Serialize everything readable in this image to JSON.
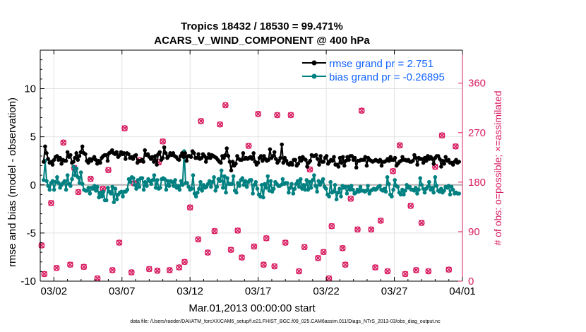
{
  "chart_data": {
    "type": "line",
    "title_line1": "Tropics 18432 / 18530 = 99.471%",
    "title_line2": "ACARS_V_WIND_COMPONENT @ 400 hPa",
    "xlabel": "Mar.01,2013 00:00:00 start",
    "ylabel_left": "rmse and bias (model - observation)",
    "ylabel_right": "# of obs: o=possible; ×=assimilated",
    "footnote": "data file: /Users/raeder/DAI/ATM_forcXX/CAM6_setup/f.e21.FHIST_BGC.f09_025.CAM6assim.011/Diags_NTrS_2013-03/obs_diag_output.nc",
    "x_tick_labels": [
      "03/02",
      "03/07",
      "03/12",
      "03/17",
      "03/22",
      "03/27",
      "04/01"
    ],
    "x_tick_days": [
      1,
      6,
      11,
      16,
      21,
      26,
      31
    ],
    "xlim_days": [
      0,
      31
    ],
    "ylim_left": [
      -10,
      14
    ],
    "y_ticks_left": [
      -10,
      -5,
      0,
      5,
      10
    ],
    "ylim_right": [
      0,
      420
    ],
    "y_ticks_right": [
      0,
      90,
      180,
      270,
      360
    ],
    "legend": [
      "rmse grand pr = 2.751",
      "bias grand pr = -0.26895"
    ],
    "colors": {
      "rmse": "#000000",
      "bias": "#008080",
      "obs": "#d81b60",
      "zero_line": "#b0b0b0",
      "legend_text": "#1565ff"
    },
    "series": [
      {
        "name": "rmse",
        "values": [
          2.4,
          4.0,
          3.3,
          2.7,
          2.3,
          2.4,
          2.1,
          2.6,
          2.9,
          3.0,
          2.6,
          2.8,
          2.2,
          2.6,
          2.5,
          2.5,
          3.4,
          2.9,
          3.1,
          2.3,
          2.4,
          2.8,
          3.3,
          2.6,
          3.0,
          3.4,
          4.0,
          3.3,
          3.2,
          2.5,
          2.3,
          2.7,
          2.5,
          2.7,
          2.9,
          2.6,
          2.2,
          2.5,
          2.3,
          2.8,
          3.0,
          3.1,
          3.1,
          2.5,
          3.3,
          3.4,
          3.6,
          3.3,
          3.2,
          3.4,
          2.9,
          3.1,
          3.4,
          3.2,
          3.3,
          2.7,
          3.3,
          3.2,
          2.8,
          2.9,
          2.7,
          3.0,
          3.1,
          2.3,
          2.5,
          2.5,
          2.6,
          2.4,
          3.6,
          3.1,
          3.2,
          2.9,
          2.7,
          2.9,
          2.4,
          3.0,
          2.1,
          3.2,
          3.4,
          2.6,
          2.8,
          3.9,
          3.3,
          2.8,
          3.0,
          3.3,
          3.1,
          3.3,
          3.0,
          2.9,
          2.7,
          2.6,
          3.0,
          3.3,
          2.9,
          3.3,
          2.5,
          3.0,
          3.0,
          2.9,
          3.5,
          3.3,
          2.8,
          2.8,
          3.2,
          2.7,
          2.8,
          3.2,
          3.0,
          2.4,
          2.8,
          3.2,
          2.8,
          3.1,
          3.0,
          2.9,
          2.8,
          2.6,
          2.4,
          2.3,
          3.0,
          2.8,
          3.1,
          3.8,
          3.0,
          2.4,
          1.5,
          2.4,
          2.0,
          2.2,
          3.0,
          2.7,
          2.6,
          2.6,
          3.3,
          2.7,
          2.8,
          2.7,
          2.8,
          2.9,
          2.7,
          3.3,
          2.4,
          2.1,
          2.3,
          2.8,
          3.0,
          2.5,
          3.0,
          2.7,
          2.5,
          2.6,
          3.7,
          2.8,
          3.0,
          3.4,
          2.7,
          2.3,
          2.5,
          2.8,
          4.2,
          2.3,
          2.8,
          2.5,
          2.2,
          2.1,
          2.3,
          2.1,
          2.6,
          2.6,
          2.0,
          2.2,
          2.8,
          2.5,
          2.9,
          2.7,
          2.6,
          1.9,
          2.3,
          2.5,
          3.1,
          3.0,
          3.0,
          3.1,
          2.7,
          2.1,
          3.0,
          2.4,
          2.4,
          2.8,
          3.0,
          2.2,
          2.4,
          2.6,
          2.5,
          2.9,
          2.1,
          2.1,
          1.9,
          2.8,
          2.3,
          2.9,
          2.0,
          2.5,
          2.9,
          2.6,
          3.0,
          3.0,
          2.6,
          2.8,
          1.8,
          2.5,
          2.5,
          2.6,
          2.6,
          2.6,
          2.9,
          2.0,
          2.8,
          2.6,
          2.5,
          2.4,
          2.5,
          2.6,
          2.5,
          2.4,
          2.6,
          2.0,
          2.4,
          2.4,
          2.5,
          2.7,
          2.5,
          2.9,
          2.6,
          2.6,
          2.8,
          2.0,
          2.2,
          2.4,
          2.5,
          2.9,
          2.6,
          2.6,
          2.5,
          2.6,
          2.4,
          2.4,
          2.5,
          3.1,
          2.8,
          2.1,
          2.8,
          2.7,
          2.7,
          2.3,
          2.8,
          2.5,
          3.0,
          2.7,
          2.9,
          2.7,
          2.2,
          2.8,
          3.0,
          3.0,
          2.7,
          1.9,
          2.5,
          2.2,
          2.9,
          2.5,
          2.6,
          2.3,
          2.3,
          2.1,
          2.4,
          2.6,
          2.3,
          2.4
        ]
      },
      {
        "name": "bias",
        "values": [
          0.5,
          2.5,
          0.4,
          -0.1,
          -0.5,
          0.2,
          0.4,
          -0.5,
          0.3,
          0.8,
          0.2,
          -0.3,
          0.0,
          0.2,
          0.4,
          -0.5,
          1.0,
          0.1,
          -0.1,
          0.6,
          1.9,
          1.0,
          1.7,
          0.8,
          0.2,
          1.3,
          0.1,
          -0.5,
          -0.6,
          -0.6,
          -0.3,
          -0.9,
          -0.3,
          -0.4,
          -0.1,
          -0.6,
          -0.2,
          -1.3,
          -0.8,
          -1.2,
          -0.7,
          -1.6,
          -1.6,
          -0.3,
          -0.7,
          -0.9,
          -0.2,
          -1.8,
          -0.4,
          -1.5,
          -1.0,
          -0.8,
          -0.7,
          -1.2,
          -0.7,
          -0.7,
          -0.5,
          0.6,
          0.3,
          0.8,
          0.7,
          0.0,
          -0.4,
          0.5,
          -0.2,
          0.7,
          0.7,
          -0.5,
          0.3,
          -0.1,
          0.6,
          0.4,
          0.1,
          0.5,
          1.0,
          -0.3,
          0.5,
          -0.4,
          -0.3,
          0.6,
          0.7,
          0.6,
          -0.5,
          0.4,
          -0.1,
          0.4,
          0.3,
          -0.1,
          0.5,
          -0.3,
          -0.1,
          -0.5,
          0.4,
          0.0,
          3.5,
          0.2,
          0.2,
          -0.2,
          -0.5,
          -0.4,
          1.0,
          -0.9,
          -1.2,
          -0.8,
          -0.4,
          0.3,
          -0.6,
          0.0,
          -0.3,
          -0.2,
          0.1,
          0.4,
          -0.2,
          0.3,
          0.8,
          -0.6,
          -0.2,
          0.6,
          0.4,
          1.5,
          -0.3,
          0.9,
          -0.8,
          0.7,
          0.1,
          0.1,
          0.1,
          0.9,
          -0.6,
          -0.8,
          0.2,
          -0.1,
          0.5,
          0.7,
          0.0,
          0.4,
          -0.2,
          0.3,
          0.5,
          0.5,
          -0.9,
          0.0,
          0.3,
          -0.4,
          -1.0,
          -1.2,
          0.0,
          -1.3,
          0.1,
          -0.3,
          0.9,
          -0.6,
          0.4,
          -0.7,
          -0.4,
          0.3,
          0.1,
          -0.1,
          -0.1,
          0.0,
          0.6,
          0.1,
          0.2,
          0.2,
          -0.8,
          -0.3,
          0.1,
          -0.9,
          -0.4,
          0.1,
          0.4,
          -0.2,
          0.6,
          -0.4,
          0.0,
          -0.5,
          0.5,
          -0.5,
          0.3,
          -0.3,
          0.5,
          1.0,
          -0.1,
          -0.7,
          0.4,
          0.0,
          0.3,
          0.6,
          -0.2,
          -0.4,
          -1.0,
          -1.2,
          0.3,
          -0.8,
          -0.7,
          0.0,
          -1.5,
          -0.8,
          -0.4,
          -1.2,
          -0.1,
          -0.3,
          -0.2,
          -0.9,
          -0.2,
          -0.5,
          -0.1,
          -0.5,
          -0.9,
          -0.8,
          -0.5,
          -0.7,
          -0.2,
          -0.6,
          -0.6,
          -0.7,
          -0.6,
          -0.1,
          -0.9,
          -0.6,
          -0.5,
          -0.4,
          -0.5,
          -0.4,
          -0.2,
          -0.1,
          -0.5,
          -0.6,
          -0.4,
          -0.7,
          0.8,
          0.1,
          -1.0,
          -1.2,
          -0.5,
          0.5,
          -0.1,
          -0.2,
          -0.8,
          -1.0,
          -0.5,
          -1.0,
          -0.6,
          0.0,
          -0.3,
          -0.2,
          -0.5,
          -0.5,
          -0.6,
          -0.3,
          -0.9,
          -0.5,
          0.7,
          0.0,
          -0.4,
          -0.8,
          -0.4,
          -0.2,
          0.3,
          -0.5,
          -0.3,
          -0.8,
          0.8,
          -0.1,
          -0.6,
          -0.7,
          -0.4,
          -0.8,
          -0.6,
          -0.2,
          -0.3,
          -0.1,
          -1.0,
          -0.2,
          -0.5,
          -0.9,
          -0.8,
          -0.9,
          -0.9
        ]
      }
    ],
    "obs_counts": [
      {
        "day": 0.1,
        "count": 65
      },
      {
        "day": 0.3,
        "count": 13
      },
      {
        "day": 0.8,
        "count": 142
      },
      {
        "day": 1.2,
        "count": 24
      },
      {
        "day": 1.7,
        "count": 252
      },
      {
        "day": 2.2,
        "count": 30
      },
      {
        "day": 2.5,
        "count": 206
      },
      {
        "day": 2.8,
        "count": 162
      },
      {
        "day": 3.2,
        "count": 26
      },
      {
        "day": 3.7,
        "count": 186
      },
      {
        "day": 4.2,
        "count": 5
      },
      {
        "day": 4.6,
        "count": 168
      },
      {
        "day": 5.0,
        "count": 202
      },
      {
        "day": 5.3,
        "count": 20
      },
      {
        "day": 5.8,
        "count": 70
      },
      {
        "day": 6.2,
        "count": 278
      },
      {
        "day": 6.7,
        "count": 16
      },
      {
        "day": 6.9,
        "count": 178
      },
      {
        "day": 7.3,
        "count": 220
      },
      {
        "day": 8.0,
        "count": 22
      },
      {
        "day": 8.6,
        "count": 19
      },
      {
        "day": 8.7,
        "count": 216
      },
      {
        "day": 9.0,
        "count": 254
      },
      {
        "day": 9.5,
        "count": 20
      },
      {
        "day": 10.2,
        "count": 25
      },
      {
        "day": 10.6,
        "count": 35
      },
      {
        "day": 11.0,
        "count": 134
      },
      {
        "day": 11.6,
        "count": 76
      },
      {
        "day": 11.8,
        "count": 291
      },
      {
        "day": 12.3,
        "count": 52
      },
      {
        "day": 12.8,
        "count": 91
      },
      {
        "day": 13.2,
        "count": 285
      },
      {
        "day": 13.6,
        "count": 320
      },
      {
        "day": 14.0,
        "count": 57
      },
      {
        "day": 14.5,
        "count": 92
      },
      {
        "day": 14.8,
        "count": 43
      },
      {
        "day": 15.3,
        "count": 246
      },
      {
        "day": 15.7,
        "count": 63
      },
      {
        "day": 16.0,
        "count": 304
      },
      {
        "day": 16.4,
        "count": 30
      },
      {
        "day": 16.6,
        "count": 78
      },
      {
        "day": 17.2,
        "count": 27
      },
      {
        "day": 17.4,
        "count": 302
      },
      {
        "day": 18.0,
        "count": 70
      },
      {
        "day": 18.4,
        "count": 302
      },
      {
        "day": 19.0,
        "count": 18
      },
      {
        "day": 19.4,
        "count": 62
      },
      {
        "day": 19.8,
        "count": 203
      },
      {
        "day": 20.4,
        "count": 42
      },
      {
        "day": 20.8,
        "count": 53
      },
      {
        "day": 21.2,
        "count": 5
      },
      {
        "day": 21.4,
        "count": 100
      },
      {
        "day": 22.2,
        "count": 60
      },
      {
        "day": 22.4,
        "count": 30
      },
      {
        "day": 22.8,
        "count": 150
      },
      {
        "day": 23.3,
        "count": 94
      },
      {
        "day": 23.6,
        "count": 310
      },
      {
        "day": 24.3,
        "count": 94
      },
      {
        "day": 24.6,
        "count": 25
      },
      {
        "day": 25.0,
        "count": 110
      },
      {
        "day": 25.5,
        "count": 18
      },
      {
        "day": 25.9,
        "count": 200
      },
      {
        "day": 26.4,
        "count": 247
      },
      {
        "day": 26.8,
        "count": 13
      },
      {
        "day": 27.2,
        "count": 137
      },
      {
        "day": 27.6,
        "count": 20
      },
      {
        "day": 28.0,
        "count": 106
      },
      {
        "day": 28.5,
        "count": 18
      },
      {
        "day": 29.0,
        "count": 208
      },
      {
        "day": 29.5,
        "count": 265
      },
      {
        "day": 30.0,
        "count": 21
      },
      {
        "day": 30.5,
        "count": 245
      }
    ]
  }
}
